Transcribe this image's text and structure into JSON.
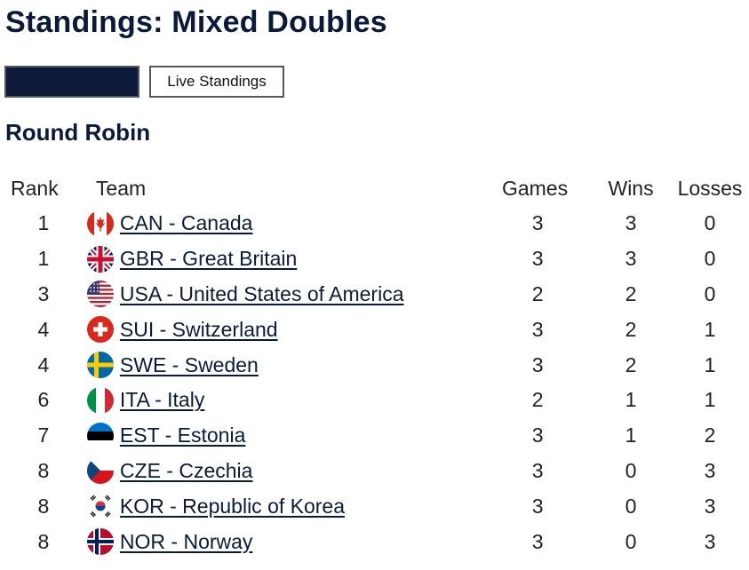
{
  "page": {
    "title": "Standings: Mixed Doubles"
  },
  "buttons": {
    "primary_label": "",
    "live_label": "Live Standings"
  },
  "section": {
    "title": "Round Robin"
  },
  "table": {
    "headers": {
      "rank": "Rank",
      "team": "Team",
      "games": "Games",
      "wins": "Wins",
      "losses": "Losses"
    },
    "rows": [
      {
        "rank": "1",
        "team": "CAN - Canada",
        "flag": "canada-flag-icon",
        "games": "3",
        "wins": "3",
        "losses": "0"
      },
      {
        "rank": "1",
        "team": "GBR - Great Britain",
        "flag": "great-britain-flag-icon",
        "games": "3",
        "wins": "3",
        "losses": "0"
      },
      {
        "rank": "3",
        "team": "USA - United States of America",
        "flag": "usa-flag-icon",
        "games": "2",
        "wins": "2",
        "losses": "0"
      },
      {
        "rank": "4",
        "team": "SUI - Switzerland",
        "flag": "switzerland-flag-icon",
        "games": "3",
        "wins": "2",
        "losses": "1"
      },
      {
        "rank": "4",
        "team": "SWE - Sweden",
        "flag": "sweden-flag-icon",
        "games": "3",
        "wins": "2",
        "losses": "1"
      },
      {
        "rank": "6",
        "team": "ITA - Italy",
        "flag": "italy-flag-icon",
        "games": "2",
        "wins": "1",
        "losses": "1"
      },
      {
        "rank": "7",
        "team": "EST - Estonia",
        "flag": "estonia-flag-icon",
        "games": "3",
        "wins": "1",
        "losses": "2"
      },
      {
        "rank": "8",
        "team": "CZE - Czechia",
        "flag": "czechia-flag-icon",
        "games": "3",
        "wins": "0",
        "losses": "3"
      },
      {
        "rank": "8",
        "team": "KOR - Republic of Korea",
        "flag": "korea-flag-icon",
        "games": "3",
        "wins": "0",
        "losses": "3"
      },
      {
        "rank": "8",
        "team": "NOR - Norway",
        "flag": "norway-flag-icon",
        "games": "3",
        "wins": "0",
        "losses": "3"
      }
    ]
  },
  "colors": {
    "title": "#0a1a3a",
    "primary_button_bg": "#0d1a3a",
    "link": "#0a1a3a"
  }
}
